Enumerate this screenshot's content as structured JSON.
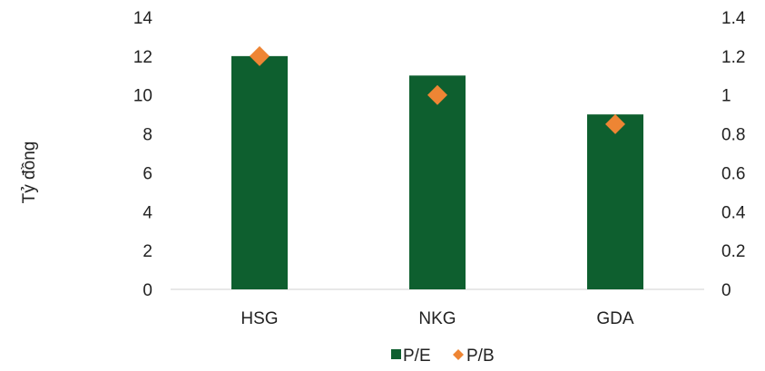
{
  "chart_data": {
    "type": "bar",
    "categories": [
      "HSG",
      "NKG",
      "GDA"
    ],
    "series": [
      {
        "name": "P/E",
        "kind": "bar",
        "axis": "left",
        "color": "#0e5f2f",
        "values": [
          12,
          11,
          9
        ]
      },
      {
        "name": "P/B",
        "kind": "scatter",
        "marker": "diamond",
        "axis": "right",
        "color": "#ee8534",
        "values": [
          1.2,
          1.0,
          0.85
        ]
      }
    ],
    "title": "",
    "xlabel": "",
    "ylabel": "Tỷ đồng",
    "ylabel_right": "",
    "ylim": [
      0,
      14
    ],
    "ylim_right": [
      0,
      1.4
    ],
    "yticks": [
      "0",
      "2",
      "4",
      "6",
      "8",
      "10",
      "12",
      "14"
    ],
    "yticks_right": [
      "0",
      "0.2",
      "0.4",
      "0.6",
      "0.8",
      "1",
      "1.2",
      "1.4"
    ],
    "grid": false,
    "legend_position": "bottom"
  }
}
